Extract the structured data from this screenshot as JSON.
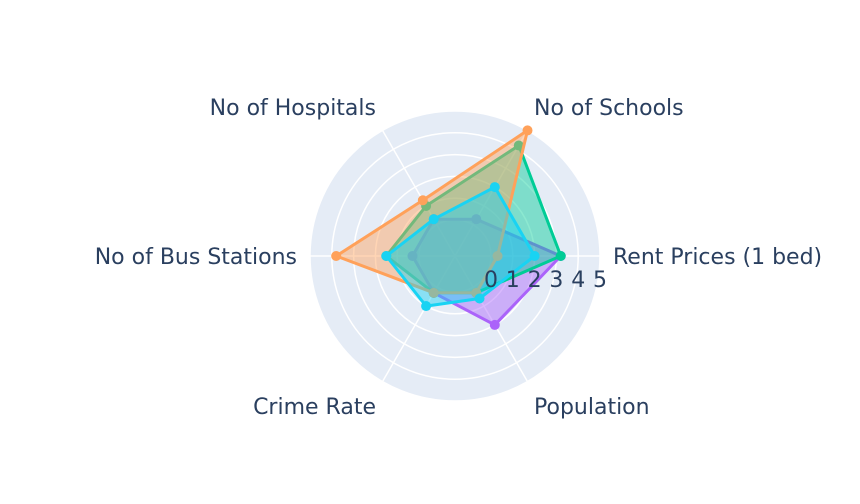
{
  "chart_data": {
    "type": "radar",
    "axes": [
      "Rent Prices (1 bed)",
      "Population",
      "Crime Rate",
      "No of Bus Stations",
      "No of Hospitals",
      "No of Schools"
    ],
    "radial_ticks": [
      "0",
      "1",
      "2",
      "3",
      "4",
      "5"
    ],
    "rlim": [
      0,
      5
    ],
    "series": [
      {
        "color": "#ab63fa",
        "values": [
          3.2,
          2.0,
          0.3,
          0.3,
          0.3,
          0.3
        ]
      },
      {
        "color": "#00cc96",
        "values": [
          3.2,
          0.3,
          0.3,
          1.5,
          1.0,
          4.2
        ]
      },
      {
        "color": "#ffa15a",
        "values": [
          0.3,
          0.3,
          0.3,
          3.8,
          1.3,
          5.0
        ]
      },
      {
        "color": "#19d3f3",
        "values": [
          2.0,
          0.6,
          1.0,
          1.5,
          0.3,
          2.0
        ]
      }
    ]
  }
}
